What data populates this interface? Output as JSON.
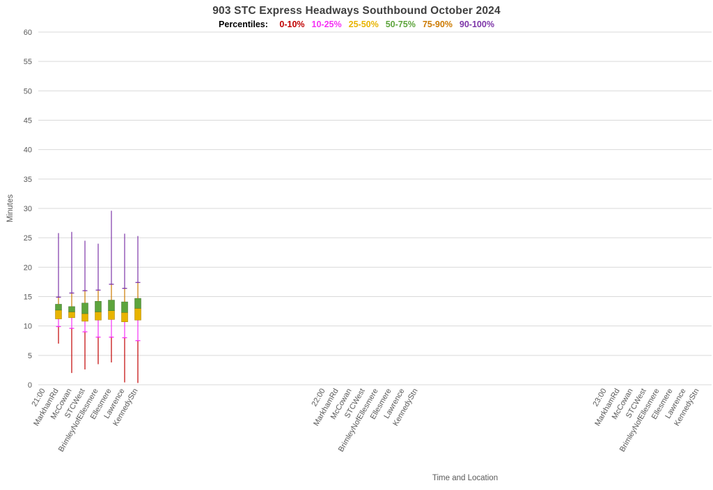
{
  "chart_data": {
    "type": "boxplot",
    "title": "903 STC Express Headways Southbound October 2024",
    "legend_title": "Percentiles:",
    "legend": [
      {
        "label": "0-10%",
        "color": "#C00000"
      },
      {
        "label": "10-25%",
        "color": "#F531F5"
      },
      {
        "label": "25-50%",
        "color": "#E8B400"
      },
      {
        "label": "50-75%",
        "color": "#5DA43C"
      },
      {
        "label": "75-90%",
        "color": "#CC7A00"
      },
      {
        "label": "90-100%",
        "color": "#7D35A8"
      }
    ],
    "xlabel": "Time and Location",
    "ylabel": "Minutes",
    "ylim": [
      0,
      60
    ],
    "ytick_step": 5,
    "colors": {
      "grid": "#D9D9D9",
      "axis_text": "#595959",
      "title_text": "#404040"
    },
    "groups": [
      {
        "time": "21:00",
        "stops": [
          "MarkhamRd",
          "McCowan",
          "STCWest",
          "BrimleyNofEllesmere",
          "Ellesmere",
          "Lawrence",
          "KennedyStn"
        ],
        "boxes": [
          {
            "stop": "MarkhamRd",
            "min": 7.0,
            "p10": 9.9,
            "p25": 11.2,
            "p50": 12.7,
            "p75": 13.7,
            "p90": 14.9,
            "max": 25.8
          },
          {
            "stop": "McCowan",
            "min": 2.0,
            "p10": 9.6,
            "p25": 11.4,
            "p50": 12.4,
            "p75": 13.3,
            "p90": 15.6,
            "max": 26.0
          },
          {
            "stop": "STCWest",
            "min": 2.6,
            "p10": 9.0,
            "p25": 10.8,
            "p50": 12.1,
            "p75": 13.9,
            "p90": 16.0,
            "max": 24.5
          },
          {
            "stop": "BrimleyNofEllesmere",
            "min": 3.5,
            "p10": 8.1,
            "p25": 11.0,
            "p50": 12.4,
            "p75": 14.2,
            "p90": 16.1,
            "max": 24.0
          },
          {
            "stop": "Ellesmere",
            "min": 3.8,
            "p10": 8.1,
            "p25": 11.1,
            "p50": 12.6,
            "p75": 14.4,
            "p90": 17.1,
            "max": 29.6
          },
          {
            "stop": "Lawrence",
            "min": 0.4,
            "p10": 8.0,
            "p25": 10.7,
            "p50": 12.3,
            "p75": 14.1,
            "p90": 16.4,
            "max": 25.7
          },
          {
            "stop": "KennedyStn",
            "min": 0.3,
            "p10": 7.5,
            "p25": 11.0,
            "p50": 13.0,
            "p75": 14.7,
            "p90": 17.4,
            "max": 25.3
          }
        ]
      },
      {
        "time": "22:00",
        "stops": [
          "MarkhamRd",
          "McCowan",
          "STCWest",
          "BrimleyNofEllesmere",
          "Ellesmere",
          "Lawrence",
          "KennedyStn"
        ],
        "boxes": []
      },
      {
        "time": "23:00",
        "stops": [
          "MarkhamRd",
          "McCowan",
          "STCWest",
          "BrimleyNofEllesmere",
          "Ellesmere",
          "Lawrence",
          "KennedyStn"
        ],
        "boxes": []
      }
    ]
  }
}
